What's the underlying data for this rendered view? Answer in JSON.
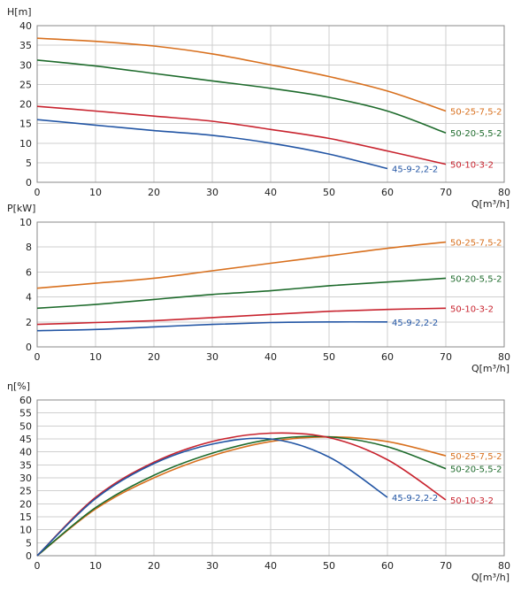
{
  "chart_data": [
    {
      "type": "line",
      "ylabel": "H[m]",
      "xlabel": "Q[m³/h]",
      "xlim": [
        0,
        80
      ],
      "ylim": [
        0,
        40
      ],
      "xticks": [
        "0",
        "10",
        "20",
        "30",
        "40",
        "50",
        "60",
        "70",
        "80"
      ],
      "yticks": [
        "0",
        "5",
        "10",
        "15",
        "20",
        "25",
        "30",
        "35",
        "40"
      ],
      "grid": true,
      "series": [
        {
          "name": "50-25-7,5-2",
          "color": "#d8701e",
          "x": [
            0,
            10,
            20,
            30,
            40,
            50,
            60,
            70
          ],
          "y": [
            36.8,
            36.0,
            34.8,
            32.8,
            30.0,
            27.0,
            23.3,
            18.2
          ]
        },
        {
          "name": "50-20-5,5-2",
          "color": "#1e6b2c",
          "x": [
            0,
            10,
            20,
            30,
            40,
            50,
            60,
            70
          ],
          "y": [
            31.2,
            29.7,
            27.8,
            25.9,
            24.0,
            21.7,
            18.2,
            12.6
          ]
        },
        {
          "name": "50-10-3-2",
          "color": "#c8232e",
          "x": [
            0,
            10,
            20,
            30,
            40,
            50,
            60,
            70
          ],
          "y": [
            19.4,
            18.2,
            16.9,
            15.6,
            13.5,
            11.2,
            8.0,
            4.6
          ]
        },
        {
          "name": "45-9-2,2-2",
          "color": "#2255a4",
          "x": [
            0,
            10,
            20,
            30,
            40,
            50,
            60
          ],
          "y": [
            16.0,
            14.6,
            13.2,
            12.0,
            10.0,
            7.2,
            3.5
          ]
        }
      ]
    },
    {
      "type": "line",
      "ylabel": "P[kW]",
      "xlabel": "Q[m³/h]",
      "xlim": [
        0,
        80
      ],
      "ylim": [
        0,
        10
      ],
      "xticks": [
        "0",
        "10",
        "20",
        "30",
        "40",
        "50",
        "60",
        "70",
        "80"
      ],
      "yticks": [
        "0",
        "2",
        "4",
        "6",
        "8",
        "10"
      ],
      "grid": true,
      "series": [
        {
          "name": "50-25-7,5-2",
          "color": "#d8701e",
          "x": [
            0,
            10,
            20,
            30,
            40,
            50,
            60,
            70
          ],
          "y": [
            4.7,
            5.1,
            5.5,
            6.1,
            6.7,
            7.3,
            7.9,
            8.4
          ]
        },
        {
          "name": "50-20-5,5-2",
          "color": "#1e6b2c",
          "x": [
            0,
            10,
            20,
            30,
            40,
            50,
            60,
            70
          ],
          "y": [
            3.1,
            3.4,
            3.8,
            4.2,
            4.5,
            4.9,
            5.2,
            5.5
          ]
        },
        {
          "name": "50-10-3-2",
          "color": "#c8232e",
          "x": [
            0,
            10,
            20,
            30,
            40,
            50,
            60,
            70
          ],
          "y": [
            1.8,
            1.95,
            2.1,
            2.35,
            2.6,
            2.85,
            3.0,
            3.1
          ]
        },
        {
          "name": "45-9-2,2-2",
          "color": "#2255a4",
          "x": [
            0,
            10,
            20,
            30,
            40,
            50,
            60
          ],
          "y": [
            1.3,
            1.4,
            1.6,
            1.8,
            1.95,
            2.0,
            2.0
          ]
        }
      ]
    },
    {
      "type": "line",
      "ylabel": "η[%]",
      "xlabel": "Q[m³/h]",
      "xlim": [
        0,
        80
      ],
      "ylim": [
        0,
        60
      ],
      "xticks": [
        "0",
        "10",
        "20",
        "30",
        "40",
        "50",
        "60",
        "70",
        "80"
      ],
      "yticks": [
        "0",
        "5",
        "10",
        "15",
        "20",
        "25",
        "30",
        "35",
        "40",
        "45",
        "50",
        "55",
        "60"
      ],
      "grid": true,
      "series": [
        {
          "name": "50-25-7,5-2",
          "color": "#d8701e",
          "x": [
            0,
            10,
            20,
            30,
            40,
            50,
            60,
            70
          ],
          "y": [
            0,
            18.0,
            30.0,
            38.5,
            44.0,
            45.8,
            44.0,
            38.5
          ]
        },
        {
          "name": "50-20-5,5-2",
          "color": "#1e6b2c",
          "x": [
            0,
            10,
            20,
            30,
            40,
            50,
            60,
            70
          ],
          "y": [
            0,
            18.5,
            31.0,
            39.5,
            44.8,
            45.8,
            42.0,
            33.5
          ]
        },
        {
          "name": "50-10-3-2",
          "color": "#c8232e",
          "x": [
            0,
            10,
            20,
            30,
            40,
            50,
            60,
            70
          ],
          "y": [
            0,
            22.5,
            36.0,
            44.0,
            47.2,
            45.5,
            37.0,
            21.5
          ]
        },
        {
          "name": "45-9-2,2-2",
          "color": "#2255a4",
          "x": [
            0,
            10,
            20,
            30,
            40,
            50,
            60
          ],
          "y": [
            0,
            22.0,
            35.5,
            43.0,
            45.0,
            38.0,
            22.5
          ]
        }
      ]
    }
  ]
}
